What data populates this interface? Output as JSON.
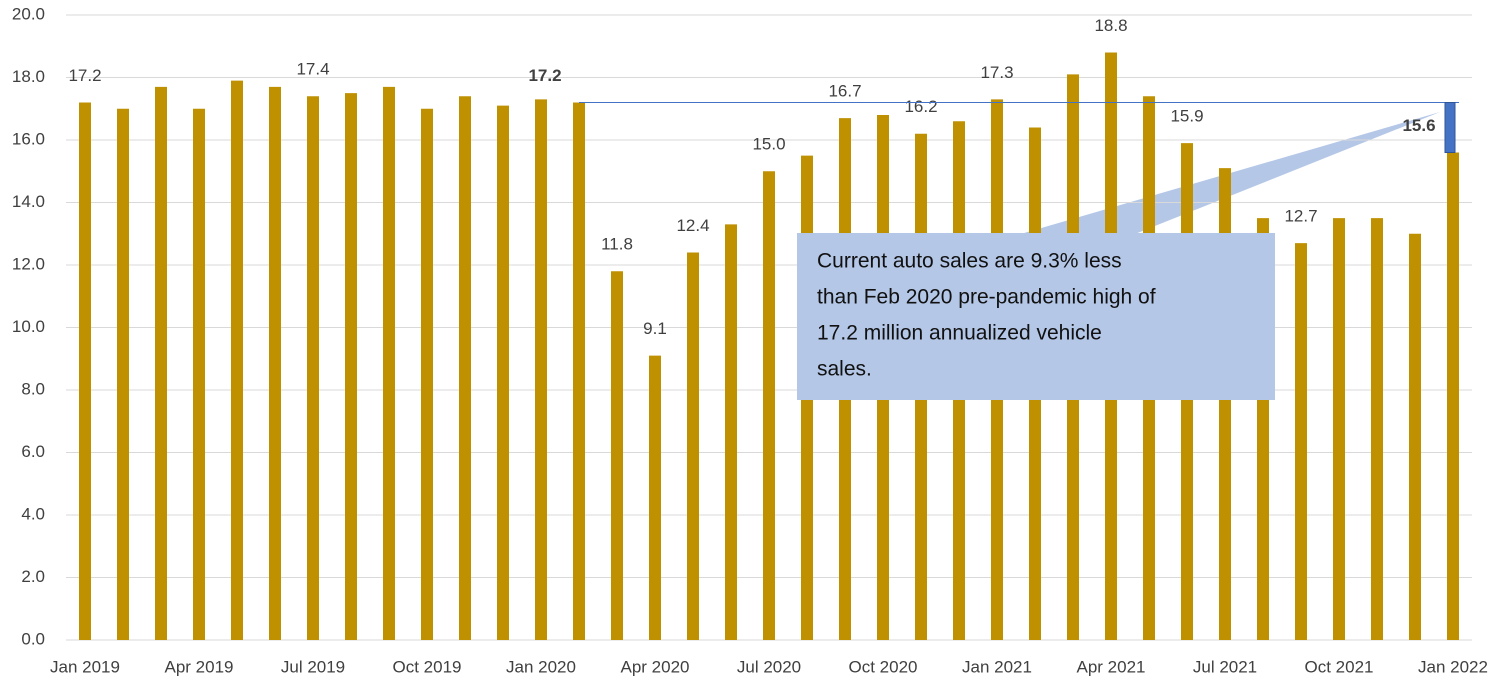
{
  "chart_data": {
    "type": "bar",
    "categories": [
      "Jan 2019",
      null,
      null,
      "Apr 2019",
      null,
      null,
      "Jul 2019",
      null,
      null,
      "Oct 2019",
      null,
      null,
      "Jan 2020",
      null,
      null,
      "Apr 2020",
      null,
      null,
      "Jul 2020",
      null,
      null,
      "Oct 2020",
      null,
      null,
      "Jan 2021",
      null,
      null,
      "Apr 2021",
      null,
      null,
      "Jul 2021",
      null,
      null,
      "Oct 2021",
      null,
      null,
      "Jan 2022"
    ],
    "values": [
      17.2,
      17.0,
      17.7,
      17.0,
      17.9,
      17.7,
      17.4,
      17.5,
      17.7,
      17.0,
      17.4,
      17.1,
      17.3,
      17.2,
      11.8,
      9.1,
      12.4,
      13.3,
      15.0,
      15.5,
      16.7,
      16.8,
      16.2,
      16.6,
      17.3,
      16.4,
      18.1,
      18.8,
      17.4,
      15.9,
      15.1,
      13.5,
      12.7,
      13.5,
      13.5,
      13.0,
      15.6
    ],
    "value_labels": [
      "17.2",
      null,
      null,
      null,
      null,
      null,
      "17.4",
      null,
      null,
      null,
      null,
      null,
      null,
      "17.2",
      "11.8",
      "9.1",
      "12.4",
      null,
      "15.0",
      null,
      "16.7",
      null,
      "16.2",
      null,
      "17.3",
      null,
      null,
      "18.8",
      null,
      "15.9",
      null,
      null,
      "12.7",
      null,
      null,
      null,
      "15.6"
    ],
    "bold_label_indices": [
      13,
      36
    ],
    "color": "#bf9000",
    "reference_color": "#4472c4",
    "ylim": [
      0,
      20
    ],
    "yticks": [
      {
        "value": 0,
        "label": "0.0"
      },
      {
        "value": 2,
        "label": "2.0"
      },
      {
        "value": 4,
        "label": "4.0"
      },
      {
        "value": 6,
        "label": "6.0"
      },
      {
        "value": 8,
        "label": "8.0"
      },
      {
        "value": 10,
        "label": "10.0"
      },
      {
        "value": 12,
        "label": "12.0"
      },
      {
        "value": 14,
        "label": "14.0"
      },
      {
        "value": 16,
        "label": "16.0"
      },
      {
        "value": 18,
        "label": "18.0"
      },
      {
        "value": 20,
        "label": "20.0"
      }
    ],
    "grid": true,
    "annotation": [
      "Current auto sales are 9.3% less",
      "than Feb 2020 pre-pandemic high of",
      "17.2 million annualized vehicle",
      "sales."
    ]
  }
}
